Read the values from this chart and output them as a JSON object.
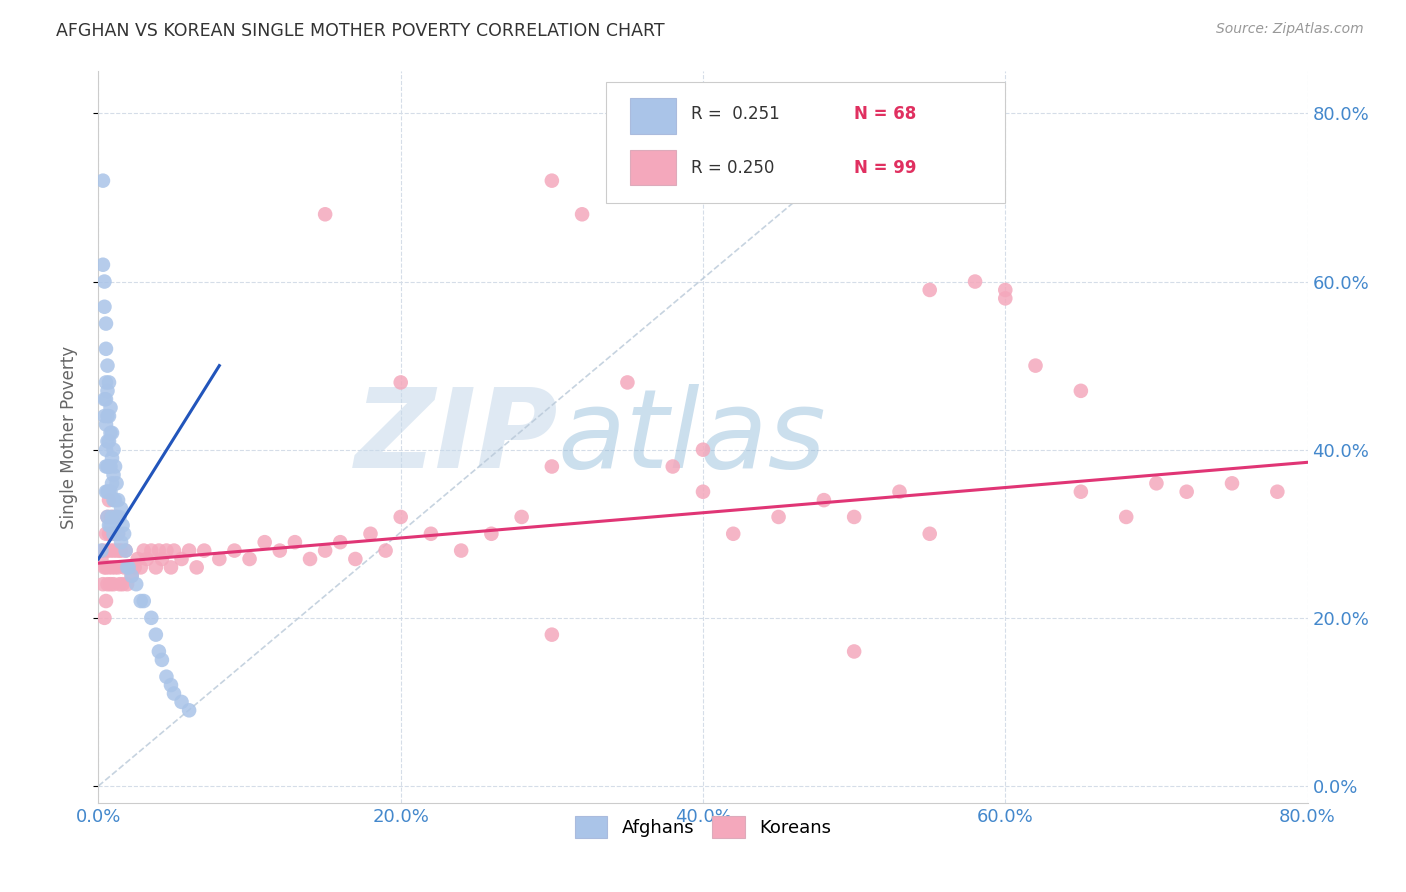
{
  "title": "AFGHAN VS KOREAN SINGLE MOTHER POVERTY CORRELATION CHART",
  "source": "Source: ZipAtlas.com",
  "xlim": [
    0.0,
    0.8
  ],
  "ylim": [
    -0.02,
    0.85
  ],
  "afghan_color": "#aac4e8",
  "korean_color": "#f4a8bc",
  "afghan_line_color": "#2255bb",
  "korean_line_color": "#e03575",
  "diagonal_color": "#b8c8d8",
  "watermark_zip": "ZIP",
  "watermark_atlas": "atlas",
  "watermark_color_zip": "#b8cfe0",
  "watermark_color_atlas": "#88aacc",
  "legend_text1": "R =  0.251   N = 68",
  "legend_text2": "R = 0.250   N = 99",
  "tick_color": "#4488cc",
  "ylabel": "Single Mother Poverty",
  "afghan_x": [
    0.002,
    0.003,
    0.003,
    0.004,
    0.004,
    0.004,
    0.004,
    0.005,
    0.005,
    0.005,
    0.005,
    0.005,
    0.005,
    0.005,
    0.005,
    0.006,
    0.006,
    0.006,
    0.006,
    0.006,
    0.006,
    0.006,
    0.007,
    0.007,
    0.007,
    0.007,
    0.007,
    0.007,
    0.008,
    0.008,
    0.008,
    0.008,
    0.008,
    0.009,
    0.009,
    0.009,
    0.009,
    0.01,
    0.01,
    0.01,
    0.01,
    0.011,
    0.011,
    0.012,
    0.012,
    0.013,
    0.013,
    0.014,
    0.015,
    0.015,
    0.016,
    0.017,
    0.018,
    0.019,
    0.02,
    0.022,
    0.025,
    0.028,
    0.03,
    0.035,
    0.038,
    0.04,
    0.042,
    0.045,
    0.048,
    0.05,
    0.055,
    0.06
  ],
  "afghan_y": [
    0.28,
    0.72,
    0.62,
    0.6,
    0.57,
    0.46,
    0.44,
    0.55,
    0.52,
    0.48,
    0.46,
    0.43,
    0.4,
    0.38,
    0.35,
    0.5,
    0.47,
    0.44,
    0.41,
    0.38,
    0.35,
    0.32,
    0.48,
    0.44,
    0.41,
    0.38,
    0.35,
    0.31,
    0.45,
    0.42,
    0.38,
    0.35,
    0.31,
    0.42,
    0.39,
    0.36,
    0.32,
    0.4,
    0.37,
    0.34,
    0.3,
    0.38,
    0.34,
    0.36,
    0.32,
    0.34,
    0.3,
    0.32,
    0.33,
    0.29,
    0.31,
    0.3,
    0.28,
    0.26,
    0.26,
    0.25,
    0.24,
    0.22,
    0.22,
    0.2,
    0.18,
    0.16,
    0.15,
    0.13,
    0.12,
    0.11,
    0.1,
    0.09
  ],
  "korean_x": [
    0.002,
    0.003,
    0.003,
    0.004,
    0.004,
    0.005,
    0.005,
    0.005,
    0.006,
    0.006,
    0.006,
    0.007,
    0.007,
    0.007,
    0.008,
    0.008,
    0.008,
    0.009,
    0.009,
    0.01,
    0.01,
    0.01,
    0.011,
    0.011,
    0.012,
    0.012,
    0.013,
    0.013,
    0.014,
    0.014,
    0.015,
    0.016,
    0.017,
    0.018,
    0.019,
    0.02,
    0.022,
    0.024,
    0.026,
    0.028,
    0.03,
    0.032,
    0.035,
    0.038,
    0.04,
    0.042,
    0.045,
    0.048,
    0.05,
    0.055,
    0.06,
    0.065,
    0.07,
    0.08,
    0.09,
    0.1,
    0.11,
    0.12,
    0.13,
    0.14,
    0.15,
    0.16,
    0.17,
    0.18,
    0.19,
    0.2,
    0.22,
    0.24,
    0.26,
    0.28,
    0.3,
    0.32,
    0.35,
    0.38,
    0.4,
    0.42,
    0.45,
    0.48,
    0.5,
    0.53,
    0.55,
    0.58,
    0.6,
    0.62,
    0.65,
    0.68,
    0.7,
    0.72,
    0.75,
    0.78,
    0.15,
    0.2,
    0.3,
    0.4,
    0.5,
    0.3,
    0.55,
    0.6,
    0.65
  ],
  "korean_y": [
    0.27,
    0.28,
    0.24,
    0.26,
    0.2,
    0.3,
    0.26,
    0.22,
    0.32,
    0.28,
    0.24,
    0.34,
    0.3,
    0.26,
    0.32,
    0.28,
    0.24,
    0.3,
    0.26,
    0.32,
    0.28,
    0.24,
    0.3,
    0.26,
    0.32,
    0.28,
    0.3,
    0.26,
    0.28,
    0.24,
    0.28,
    0.24,
    0.26,
    0.28,
    0.24,
    0.26,
    0.25,
    0.26,
    0.27,
    0.26,
    0.28,
    0.27,
    0.28,
    0.26,
    0.28,
    0.27,
    0.28,
    0.26,
    0.28,
    0.27,
    0.28,
    0.26,
    0.28,
    0.27,
    0.28,
    0.27,
    0.29,
    0.28,
    0.29,
    0.27,
    0.28,
    0.29,
    0.27,
    0.3,
    0.28,
    0.32,
    0.3,
    0.28,
    0.3,
    0.32,
    0.72,
    0.68,
    0.48,
    0.38,
    0.35,
    0.3,
    0.32,
    0.34,
    0.32,
    0.35,
    0.3,
    0.6,
    0.58,
    0.5,
    0.35,
    0.32,
    0.36,
    0.35,
    0.36,
    0.35,
    0.68,
    0.48,
    0.38,
    0.4,
    0.16,
    0.18,
    0.59,
    0.59,
    0.47
  ]
}
